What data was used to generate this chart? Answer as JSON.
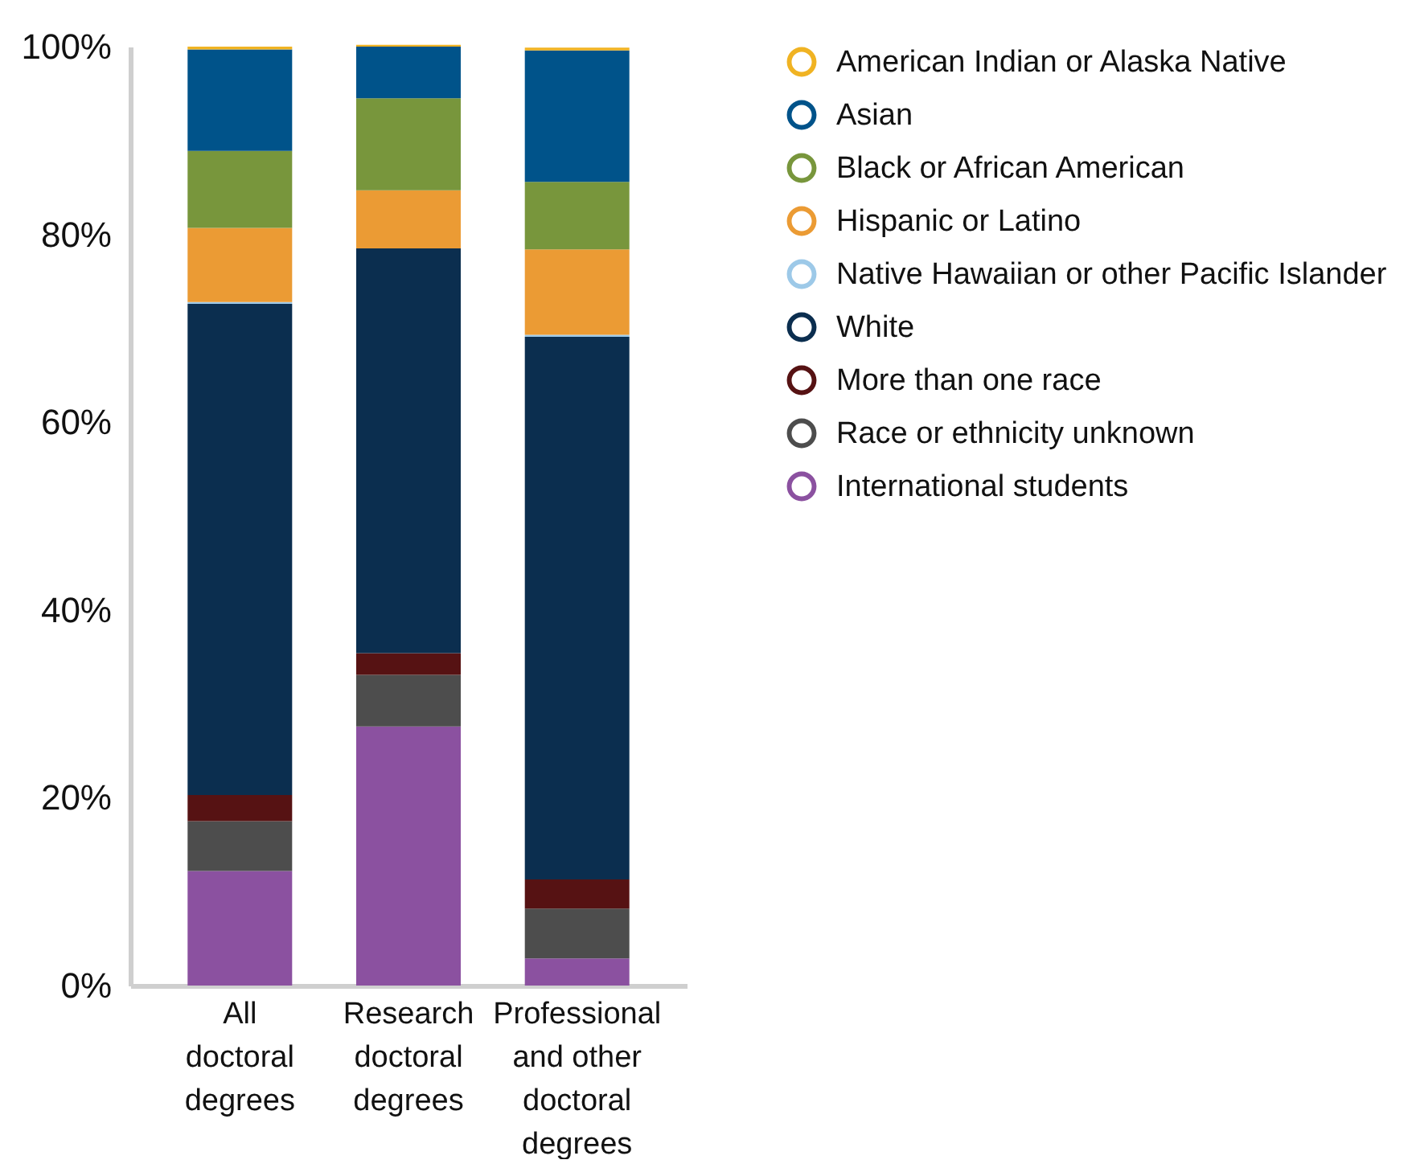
{
  "chart_data": {
    "type": "bar",
    "stacked": true,
    "categories": [
      "All doctoral degrees",
      "Research doctoral degrees",
      "Professional and other doctoral degrees"
    ],
    "ylim": [
      0,
      100
    ],
    "yticks": [
      {
        "value": 0,
        "label": "0%"
      },
      {
        "value": 20,
        "label": "20%"
      },
      {
        "value": 40,
        "label": "40%"
      },
      {
        "value": 60,
        "label": "60%"
      },
      {
        "value": 80,
        "label": "80%"
      },
      {
        "value": 100,
        "label": "100%"
      }
    ],
    "grid": false,
    "legend": "right",
    "series": [
      {
        "name": "International students",
        "color": "#8b51a0",
        "values": [
          12.2,
          27.6,
          2.9
        ]
      },
      {
        "name": "Race or ethnicity unknown",
        "color": "#4d4d4d",
        "values": [
          5.3,
          5.5,
          5.3
        ]
      },
      {
        "name": "More than one race",
        "color": "#561213",
        "values": [
          2.8,
          2.3,
          3.1
        ]
      },
      {
        "name": "White",
        "color": "#0b2e4f",
        "values": [
          52.3,
          43.1,
          57.8
        ]
      },
      {
        "name": "Native Hawaiian or other Pacific Islander",
        "color": "#9dc9e8",
        "values": [
          0.2,
          null,
          0.2
        ]
      },
      {
        "name": "Hispanic or Latino",
        "color": "#eb9b34",
        "values": [
          7.9,
          6.2,
          9.1
        ]
      },
      {
        "name": "Black or African American",
        "color": "#78963c",
        "values": [
          8.2,
          9.8,
          7.2
        ]
      },
      {
        "name": "Asian",
        "color": "#00538a",
        "values": [
          10.8,
          5.5,
          14.0
        ]
      },
      {
        "name": "American Indian or Alaska Native",
        "color": "#f0b323",
        "values": [
          0.3,
          0.2,
          0.3
        ]
      }
    ]
  }
}
